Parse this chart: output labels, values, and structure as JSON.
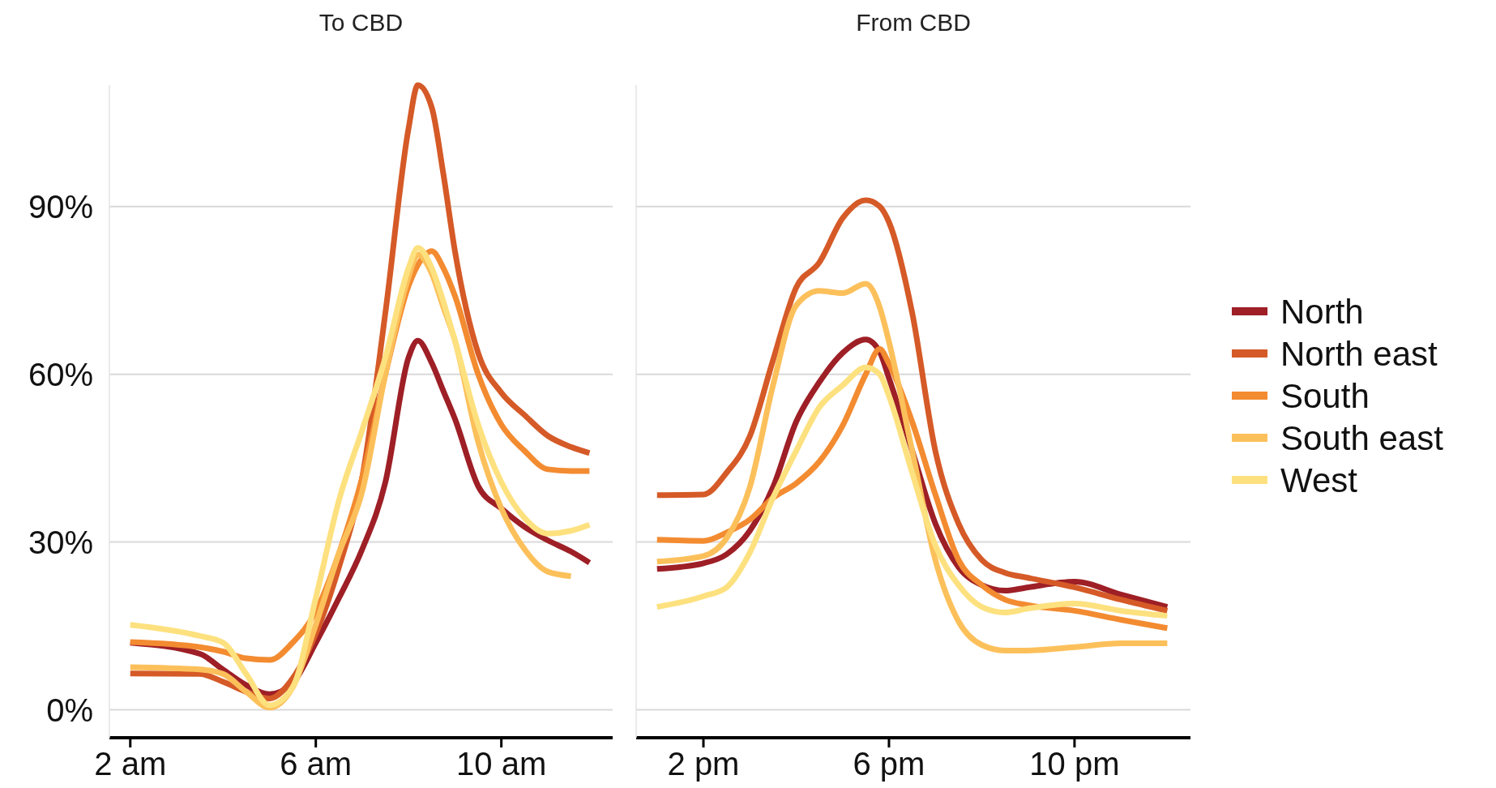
{
  "chart_data": [
    {
      "type": "line",
      "title": "To CBD",
      "grid": "y",
      "line_style": "solid",
      "x": [
        2,
        3.5,
        4,
        4.5,
        5,
        5.5,
        6,
        6.5,
        7,
        7.5,
        8,
        8.2,
        8.5,
        8.75,
        9,
        9.5,
        10,
        10.5,
        11,
        11.5,
        11.9
      ],
      "xlim": [
        1.55,
        12.4
      ],
      "xticks": [
        {
          "value": 2,
          "label": "2 am"
        },
        {
          "value": 6,
          "label": "6 am"
        },
        {
          "value": 10,
          "label": "10 am"
        }
      ],
      "ylim": [
        -5,
        111.7
      ],
      "yticks": [
        {
          "value": 0,
          "label": "0%"
        },
        {
          "value": 30,
          "label": "30%"
        },
        {
          "value": 60,
          "label": "60%"
        },
        {
          "value": 90,
          "label": "90%"
        }
      ],
      "series": [
        {
          "color": "#9e1f26",
          "values": [
            12,
            10,
            7.2,
            4.4,
            2.8,
            4.8,
            12,
            20,
            28.7,
            40.7,
            63,
            66,
            62,
            57,
            52,
            40,
            36,
            32.7,
            30.3,
            28.3,
            26.3
          ]
        },
        {
          "color": "#d55a27",
          "values": [
            6.5,
            6.4,
            5,
            3.2,
            2,
            5.6,
            13.6,
            25.5,
            41.5,
            71,
            104,
            111.7,
            107.7,
            95.8,
            82,
            63.8,
            56.7,
            52.7,
            49,
            47,
            45.9
          ]
        },
        {
          "color": "#f38b31",
          "values": [
            12.1,
            11.2,
            10.4,
            9.2,
            8.9,
            12,
            17.6,
            28,
            41.5,
            60,
            75.8,
            79.5,
            82,
            79,
            74,
            60,
            51,
            46.3,
            43,
            42.7,
            42.7
          ]
        },
        {
          "color": "#fcc05b",
          "values": [
            7.6,
            7.2,
            6.4,
            3.2,
            0.4,
            4,
            15.2,
            28,
            39,
            60,
            77.4,
            81.4,
            78,
            72,
            66,
            47.9,
            36,
            28.7,
            24.7,
            23.9,
            null
          ]
        },
        {
          "color": "#fde17f",
          "values": [
            15.2,
            13.2,
            12,
            6.4,
            0.8,
            4,
            20,
            37.5,
            50,
            63,
            79,
            82.6,
            79,
            73,
            66,
            51,
            40.7,
            34.3,
            31.5,
            32,
            33.1
          ]
        }
      ]
    },
    {
      "type": "line",
      "title": "From CBD",
      "legend": "right",
      "grid": "y",
      "tick_labels": "x",
      "line_style": "solid",
      "x": [
        1,
        2,
        2.5,
        3,
        3.5,
        4,
        4.5,
        5,
        5.5,
        5.8,
        6,
        6.5,
        7,
        7.5,
        8,
        8.5,
        9,
        10,
        11,
        12
      ],
      "xlim": [
        0.55,
        12.5
      ],
      "xticks": [
        {
          "value": 2,
          "label": "2 pm"
        },
        {
          "value": 6,
          "label": "6 pm"
        },
        {
          "value": 10,
          "label": "10 pm"
        }
      ],
      "ylim": [
        -5,
        111.7
      ],
      "yticks": [
        {
          "value": 0,
          "label": null
        },
        {
          "value": 30,
          "label": null
        },
        {
          "value": 60,
          "label": null
        },
        {
          "value": 90,
          "label": null
        }
      ],
      "series": [
        {
          "name": "North",
          "color": "#9e1f26",
          "values": [
            25.2,
            26.2,
            27.8,
            32,
            39.8,
            51.5,
            58.6,
            63.8,
            66.2,
            64,
            59.3,
            46.3,
            33.3,
            25.5,
            22.3,
            21.3,
            21.9,
            22.9,
            20.6,
            18.4
          ]
        },
        {
          "name": "North east",
          "color": "#d55a27",
          "values": [
            38.4,
            38.5,
            42.4,
            48.9,
            62.5,
            75.5,
            80,
            87.9,
            91.1,
            90,
            87.2,
            71,
            46.3,
            33.3,
            26.8,
            24.5,
            23.6,
            21.9,
            19.7,
            17.7
          ]
        },
        {
          "name": "South",
          "color": "#f38b31",
          "values": [
            30.4,
            30.2,
            31.7,
            34,
            37.9,
            40.5,
            44.4,
            50.8,
            60,
            64.5,
            61.9,
            51.5,
            38.5,
            26.8,
            22.3,
            19.7,
            18.7,
            17.7,
            16.1,
            14.6
          ]
        },
        {
          "name": "South east",
          "color": "#fcc05b",
          "values": [
            26.5,
            27.5,
            30.7,
            39.8,
            58,
            72.3,
            74.9,
            74.5,
            76.2,
            72,
            65.8,
            46.3,
            26.8,
            15.8,
            11.6,
            10.6,
            10.6,
            11.2,
            11.9,
            11.9
          ]
        },
        {
          "name": "West",
          "color": "#fde17f",
          "values": [
            18.4,
            20.3,
            21.9,
            28.1,
            37.9,
            46.3,
            54.1,
            58,
            61.2,
            60,
            56.1,
            42.4,
            29.4,
            22.3,
            18.4,
            17.4,
            18.1,
            19,
            17.7,
            16.8
          ]
        }
      ]
    }
  ]
}
